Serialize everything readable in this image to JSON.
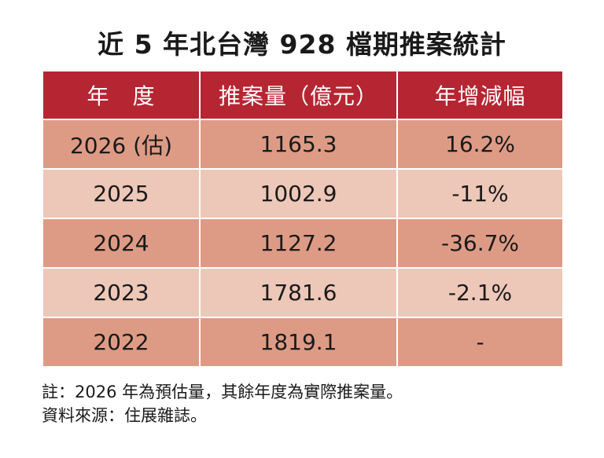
{
  "title": "近 5 年北台灣 928 檔期推案統計",
  "table": {
    "headers": [
      "年　度",
      "推案量（億元）",
      "年增減幅"
    ],
    "rows": [
      {
        "year": "2026 (估)",
        "volume": "1165.3",
        "change": "16.2%"
      },
      {
        "year": "2025",
        "volume": "1002.9",
        "change": "-11%"
      },
      {
        "year": "2024",
        "volume": "1127.2",
        "change": "-36.7%"
      },
      {
        "year": "2023",
        "volume": "1781.6",
        "change": "-2.1%"
      },
      {
        "year": "2022",
        "volume": "1819.1",
        "change": "-"
      }
    ]
  },
  "notes": {
    "note": "註：2026 年為預估量，其餘年度為實際推案量。",
    "source": "資料來源：住展雜誌。"
  },
  "colors": {
    "header_bg": "#b52632",
    "row_dark": "#dd9b85",
    "row_light": "#edc7b8"
  }
}
